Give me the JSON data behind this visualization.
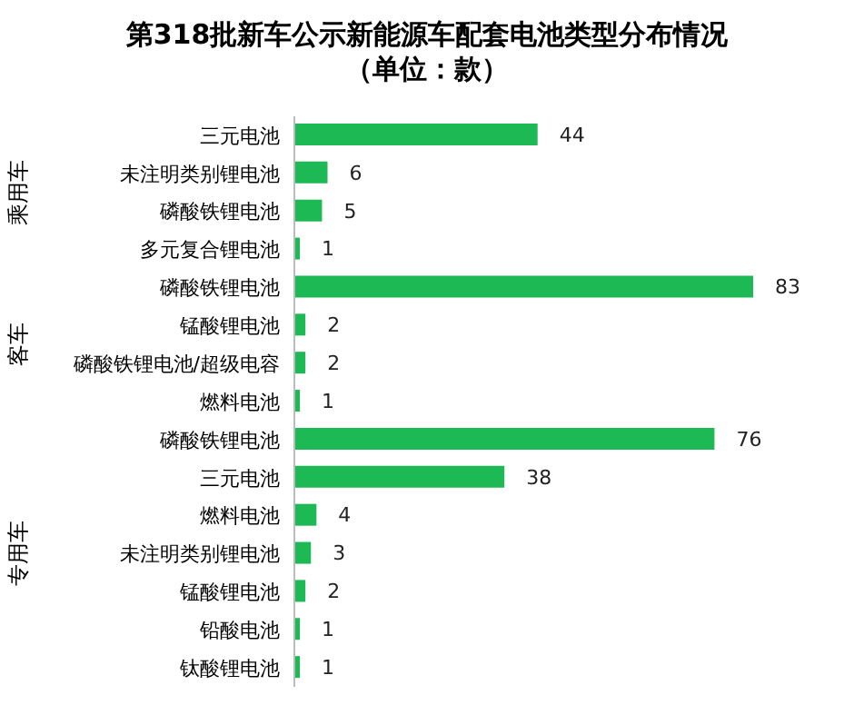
{
  "chart_data": {
    "type": "bar",
    "orientation": "horizontal",
    "title": "第318批新车公示新能源车配套电池类型分布情况",
    "subtitle": "（单位：款）",
    "categories": [
      "三元电池",
      "未注明类别锂电池",
      "磷酸铁锂电池",
      "多元复合锂电池",
      "磷酸铁锂电池",
      "锰酸锂电池",
      "磷酸铁锂电池/超级电容",
      "燃料电池",
      "磷酸铁锂电池",
      "三元电池",
      "燃料电池",
      "未注明类别锂电池",
      "锰酸锂电池",
      "铅酸电池",
      "钛酸锂电池"
    ],
    "values": [
      44,
      6,
      5,
      1,
      83,
      2,
      2,
      1,
      76,
      38,
      4,
      3,
      2,
      1,
      1
    ],
    "color": "#1db954",
    "data_labels": true,
    "annotations": [
      "乘用车",
      "客车",
      "专用车"
    ]
  }
}
